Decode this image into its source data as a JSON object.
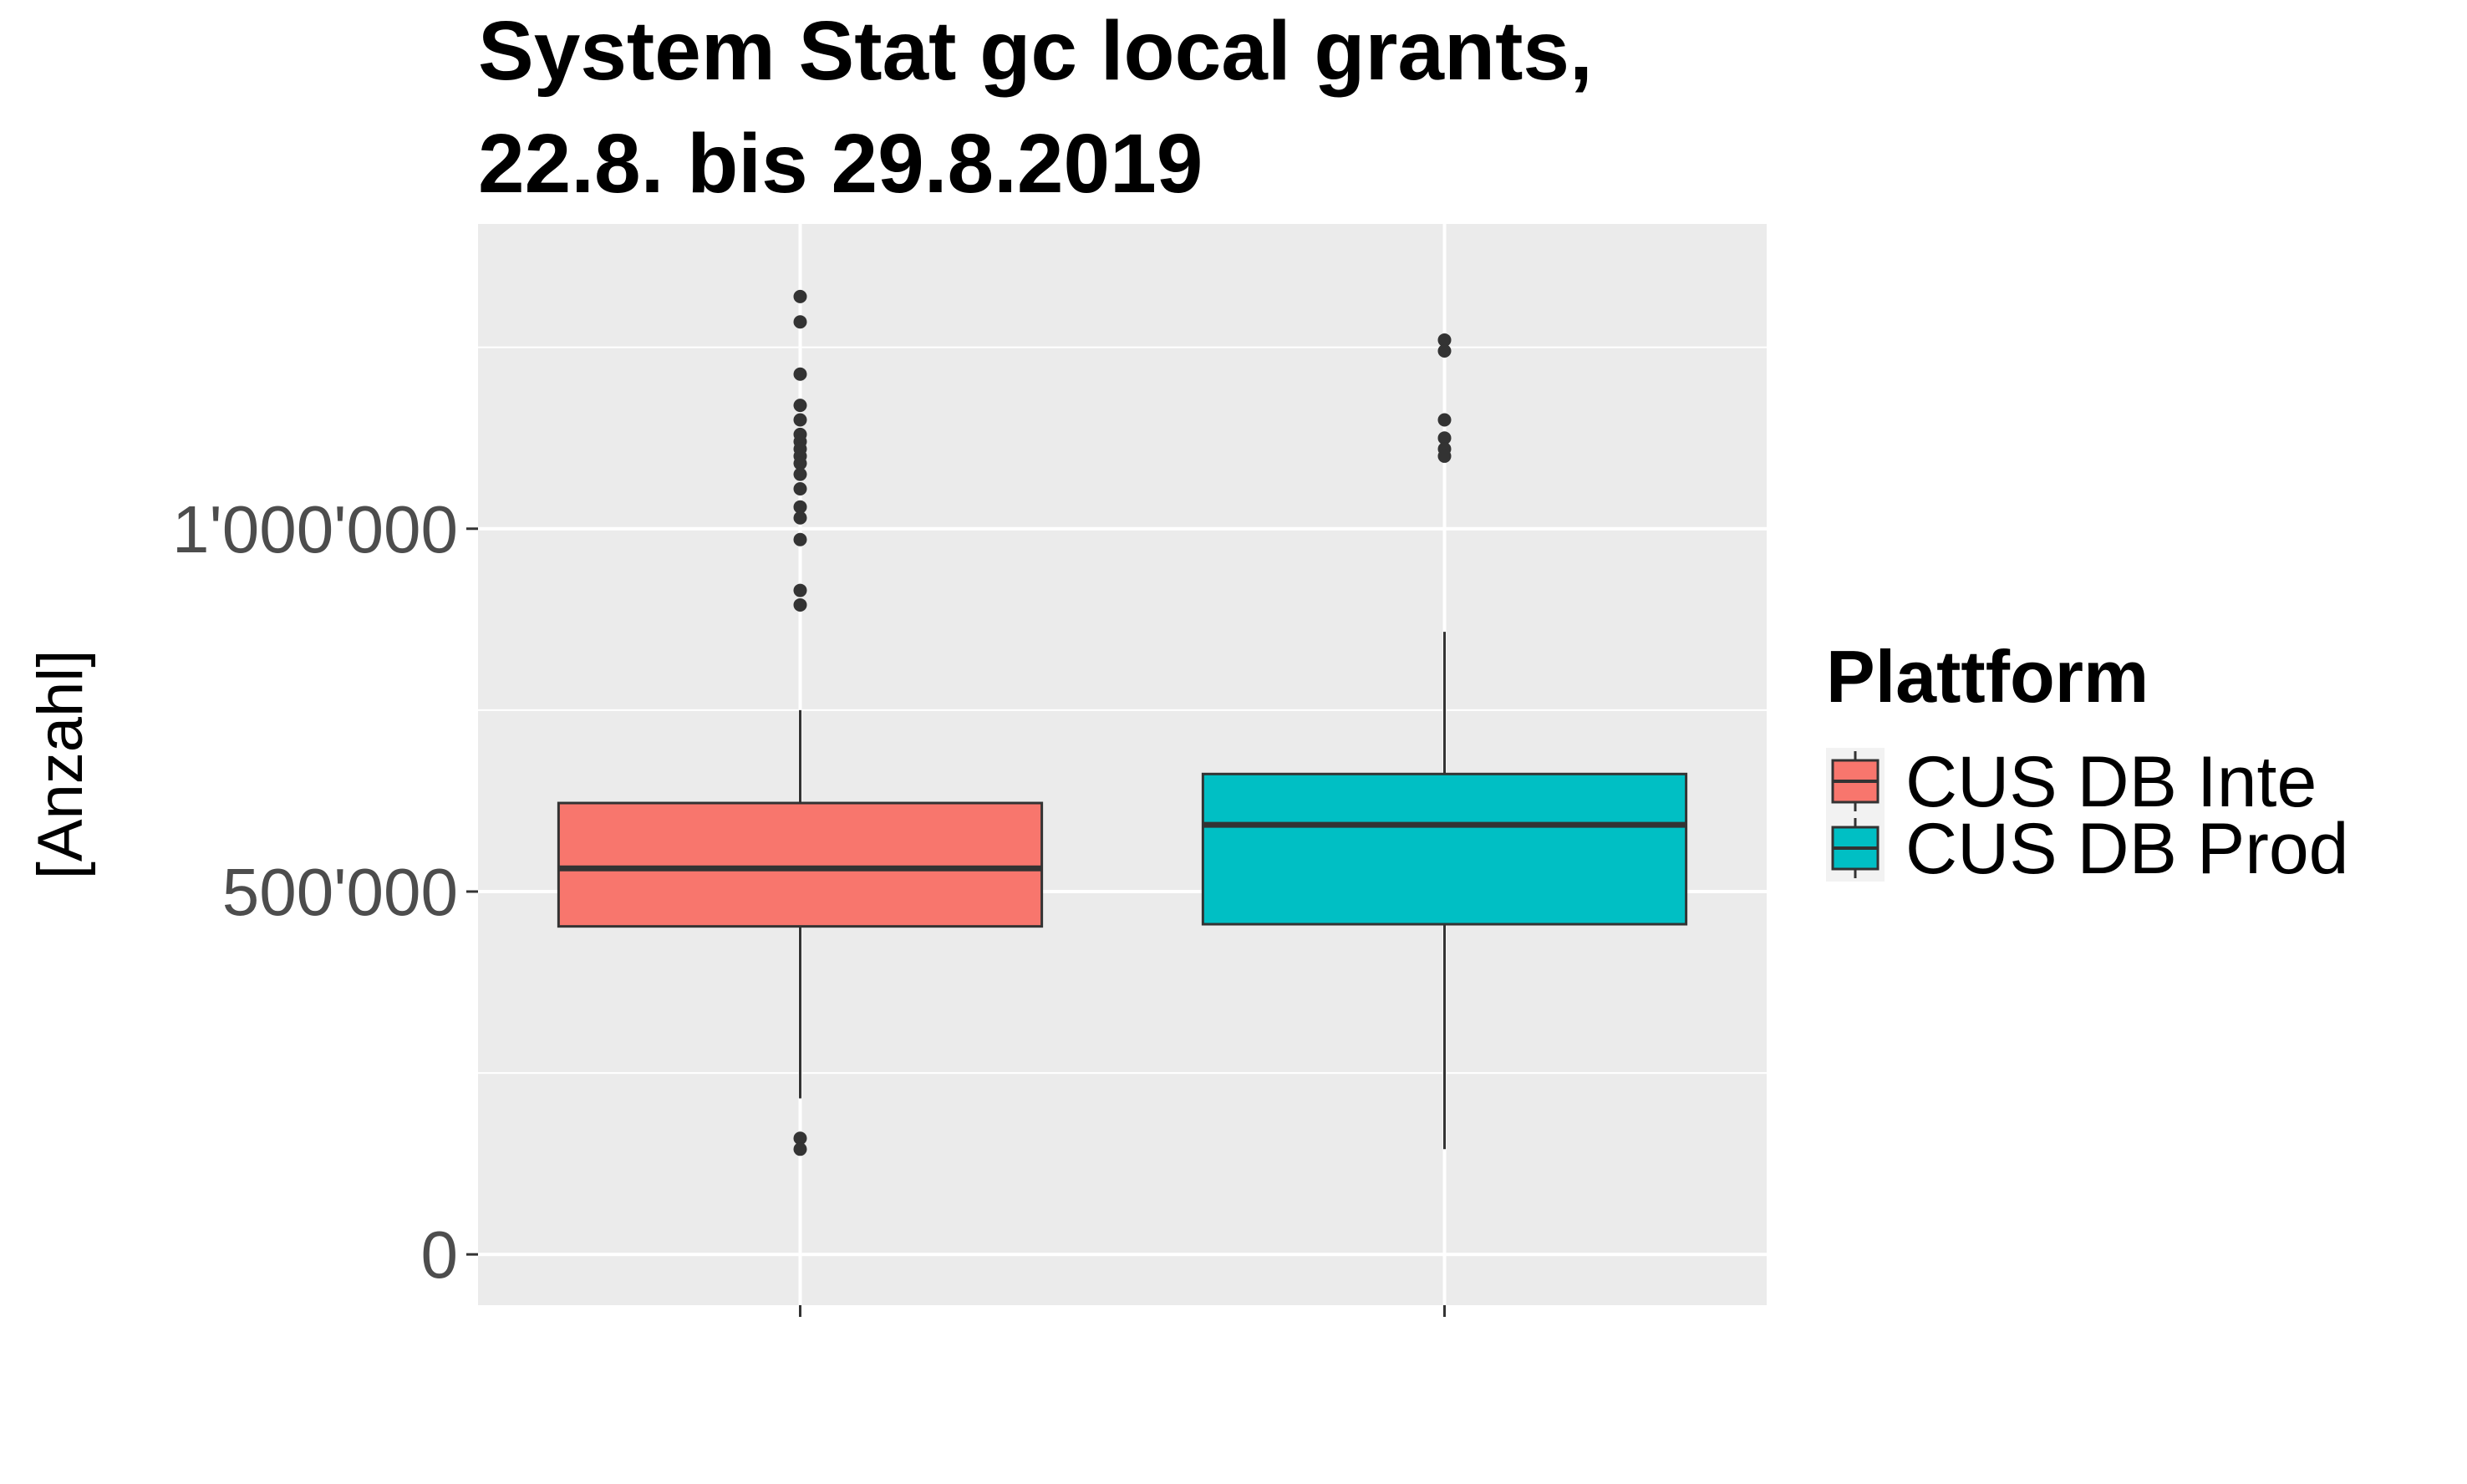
{
  "chart_data": {
    "type": "boxplot",
    "title_lines": [
      "System Stat gc local grants,",
      "22.8. bis 29.8.2019"
    ],
    "ylabel": "[Anzahl]",
    "xlabel": "",
    "ylim": [
      -70000,
      1420000
    ],
    "yticks": [
      {
        "value": 0,
        "label": "0"
      },
      {
        "value": 500000,
        "label": "500'000"
      },
      {
        "value": 1000000,
        "label": "1'000'000"
      }
    ],
    "y_minor_gridlines": [
      250000,
      750000,
      1250000
    ],
    "grid": true,
    "legend": {
      "title": "Plattform",
      "position": "right",
      "entries": [
        "CUS DB Inte",
        "CUS DB Prod"
      ]
    },
    "series": [
      {
        "name": "CUS DB Inte",
        "color": "#F8766D",
        "whisker_low": 215000,
        "q1": 452000,
        "median": 532000,
        "q3": 622000,
        "whisker_high": 750000,
        "outliers": [
          1320000,
          1285000,
          1213000,
          1170000,
          1150000,
          1130000,
          1120000,
          1110000,
          1100000,
          1090000,
          1075000,
          1055000,
          1030000,
          1015000,
          985000,
          915000,
          895000,
          160000,
          145000
        ]
      },
      {
        "name": "CUS DB Prod",
        "color": "#00BFC4",
        "whisker_low": 145000,
        "q1": 455000,
        "median": 592000,
        "q3": 662000,
        "whisker_high": 858000,
        "outliers": [
          1260000,
          1245000,
          1150000,
          1125000,
          1110000,
          1100000
        ]
      }
    ]
  }
}
